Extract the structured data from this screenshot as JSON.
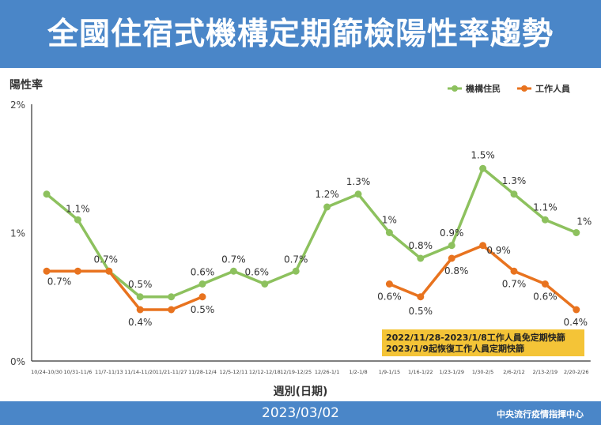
{
  "title": "全國住宿式機構定期篩檢陽性率趨勢",
  "footer": {
    "date": "2023/03/02",
    "source": "中央流行疫情指揮中心"
  },
  "colors": {
    "header": "#4a86c8",
    "green": "#8dc15e",
    "orange": "#e8731f",
    "note_bg": "#f4c437",
    "axis": "#333333"
  },
  "chart_data": {
    "type": "line",
    "ylabel": "陽性率",
    "xlabel": "週別(日期)",
    "ylim": [
      0,
      2
    ],
    "yticks": [
      "0%",
      "1%",
      "2%"
    ],
    "legend_position": "top-right",
    "categories": [
      "10/24-10/30",
      "10/31-11/6",
      "11/7-11/13",
      "11/14-11/20",
      "11/21-11/27",
      "11/28-12/4",
      "12/5-12/11",
      "12/12-12/18",
      "12/19-12/25",
      "12/26-1/1",
      "1/2-1/8",
      "1/9-1/15",
      "1/16-1/22",
      "1/23-1/29",
      "1/30-2/5",
      "2/6-2/12",
      "2/13-2/19",
      "2/20-2/26"
    ],
    "series": [
      {
        "name": "機構住民",
        "values": [
          1.3,
          1.1,
          0.7,
          0.5,
          0.5,
          0.6,
          0.7,
          0.6,
          0.7,
          1.2,
          1.3,
          1.0,
          0.8,
          0.9,
          1.5,
          1.3,
          1.1,
          1.0
        ],
        "labels": [
          "",
          "1.1%",
          "0.7%",
          "0.5%",
          "",
          "0.6%",
          "0.7%",
          "0.6%",
          "0.7%",
          "1.2%",
          "1.3%",
          "1%",
          "0.8%",
          "0.9%",
          "1.5%",
          "1.3%",
          "1.1%",
          "1%"
        ]
      },
      {
        "name": "工作人員",
        "values": [
          0.7,
          0.7,
          0.7,
          0.4,
          0.4,
          0.5,
          null,
          null,
          null,
          null,
          null,
          0.6,
          0.5,
          0.8,
          0.9,
          0.7,
          0.6,
          0.4
        ],
        "labels": [
          "0.7%",
          "",
          "",
          "0.4%",
          "",
          "0.5%",
          "",
          "",
          "",
          "",
          "",
          "0.6%",
          "0.5%",
          "0.8%",
          "0.9%",
          "0.7%",
          "0.6%",
          "0.4%"
        ]
      }
    ],
    "note": [
      "2022/11/28-2023/1/8工作人員免定期快篩",
      "2023/1/9起恢復工作人員定期快篩"
    ]
  }
}
